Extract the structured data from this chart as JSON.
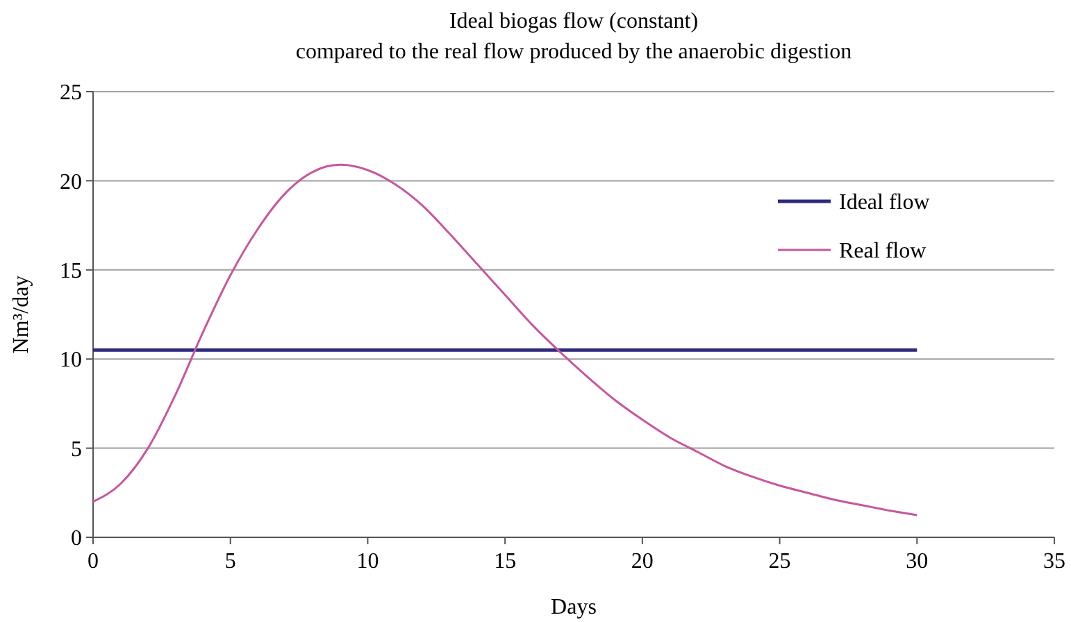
{
  "chart_data": {
    "type": "line",
    "title": "Ideal biogas flow (constant)",
    "subtitle": "compared to the real flow produced by the anaerobic digestion",
    "xlabel": "Days",
    "ylabel": "Nm³/day",
    "xlim": [
      0,
      35
    ],
    "xticks": [
      0,
      5,
      10,
      15,
      20,
      25,
      30,
      35
    ],
    "ylim": [
      0,
      25
    ],
    "yticks": [
      0,
      5,
      10,
      15,
      20,
      25
    ],
    "grid": "y",
    "legend": "right",
    "marker": "none",
    "line_style": "solid",
    "series": [
      {
        "name": "Ideal flow",
        "color": "#2e2a7e",
        "x": [
          0,
          30
        ],
        "values": [
          10.5,
          10.5
        ]
      },
      {
        "name": "Real flow",
        "color": "#c8569e",
        "x": [
          0,
          1,
          2,
          3,
          4,
          5,
          6,
          7,
          8,
          9,
          10,
          11,
          12,
          13,
          14,
          15,
          16,
          17,
          18,
          19,
          20,
          21,
          22,
          23,
          24,
          25,
          26,
          27,
          28,
          29,
          30
        ],
        "values": [
          2.0,
          3.0,
          5.0,
          8.0,
          11.5,
          14.7,
          17.3,
          19.3,
          20.5,
          20.9,
          20.6,
          19.8,
          18.6,
          17.0,
          15.3,
          13.6,
          11.9,
          10.4,
          9.0,
          7.7,
          6.6,
          5.6,
          4.8,
          4.0,
          3.4,
          2.9,
          2.5,
          2.1,
          1.8,
          1.5,
          1.25
        ]
      }
    ]
  }
}
